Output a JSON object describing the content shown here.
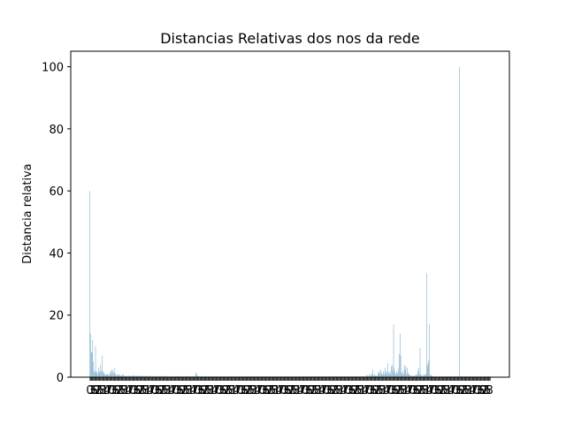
{
  "chart_data": {
    "type": "bar",
    "title": "Distancias Relativas dos nos da rede",
    "xlabel": "",
    "ylabel": "Distancia relativa",
    "ylim": [
      0,
      105
    ],
    "yticks": [
      0,
      20,
      40,
      60,
      80,
      100
    ],
    "grid": false,
    "bar_color": "#86b4cf",
    "xlim": [
      0,
      690
    ],
    "values": [
      60,
      14,
      8,
      8,
      12,
      5,
      2,
      1.5,
      10,
      2,
      1.5,
      1,
      3,
      2,
      1.5,
      4,
      2,
      7,
      1.5,
      2,
      1,
      1,
      0.8,
      1,
      0.8,
      1,
      0.8,
      0.6,
      1.5,
      2,
      1,
      2.5,
      2,
      1,
      3,
      1.5,
      1,
      0.5,
      0.8,
      1,
      0.6,
      0.5,
      1,
      0.5,
      0.4,
      0.6,
      0.8,
      1,
      0.3,
      0.5,
      0.3,
      0.4,
      0.3,
      0.5,
      0.4,
      0.3,
      0.6,
      0.4,
      0.3,
      0.5,
      0.3,
      0.8,
      0.4,
      0.3,
      0.5,
      0.3,
      0.4,
      0.5,
      0.3,
      0.6,
      0.3,
      0.2,
      0.4,
      0.3,
      0.5,
      0.3,
      0.2,
      0.4,
      0.3,
      0.6,
      0.3,
      0.4,
      0.2,
      0.3,
      0.5,
      0.3,
      0.2,
      0.4,
      0.3,
      0.2,
      0.3,
      0.4,
      0.2,
      0.3,
      0.2,
      0.3,
      0.4,
      0.2,
      0.3,
      0.2,
      0.4,
      0.3,
      0.2,
      0.3,
      0.2,
      0.5,
      0.3,
      0.2,
      0.3,
      0.2,
      0.3,
      0.2,
      0.4,
      0.3,
      0.2,
      0.3,
      0.2,
      0.3,
      0.2,
      0.3,
      0.2,
      0.3,
      0.4,
      0.3,
      0.2,
      0.3,
      0.2,
      0.3,
      0.2,
      0.3,
      0.2,
      0.3,
      0.2,
      0.3,
      0.2,
      0.4,
      0.2,
      0.3,
      0.2,
      0.3,
      0.2,
      0.3,
      0.2,
      0.3,
      0.2,
      0.3,
      0.2,
      0.3,
      1.5,
      1.2,
      0.5,
      0.3,
      0.2,
      0.3,
      0.2,
      0.3,
      0.2,
      0.3,
      0.2,
      0.3,
      0.2,
      0.3,
      0.2,
      0.3,
      0.2,
      0.3,
      0.2,
      0.3,
      0.2,
      0.3,
      0.2,
      0.3,
      0.2,
      0.3,
      0.2,
      0.3,
      0.2,
      0.3,
      0.2,
      0.3,
      0.2,
      0.3,
      0.2,
      0.3,
      0.2,
      0.3,
      0.2,
      0.3,
      0.2,
      0.3,
      0.2,
      0.3,
      0.2,
      0.3,
      0.2,
      0.3,
      0.2,
      0.3,
      0.2,
      0.3,
      0.2,
      0.3,
      0.2,
      0.3,
      0.2,
      0.3,
      0.2,
      0.3,
      0.2,
      0.3,
      0.2,
      0.3,
      0.2,
      0.3,
      0.2,
      0.3,
      0.2,
      0.3,
      0.2,
      0.3,
      0.2,
      0.3,
      0.2,
      0.3,
      0.2,
      0.3,
      0.2,
      0.3,
      0.2,
      0.3,
      0.2,
      0.3,
      0.2,
      0.3,
      0.2,
      0.3,
      0.2,
      0.3,
      0.2,
      0.3,
      0.2,
      0.3,
      0.2,
      0.3,
      0.2,
      0.3,
      0.2,
      0.3,
      0.2,
      0.3,
      0.2,
      0.3,
      0.2,
      0.3,
      0.2,
      0.3,
      0.2,
      0.3,
      0.2,
      0.3,
      0.2,
      0.3,
      0.2,
      0.3,
      0.2,
      0.3,
      0.2,
      0.3,
      0.2,
      0.3,
      0.2,
      0.3,
      0.2,
      0.3,
      0.2,
      0.3,
      0.2,
      0.3,
      0.2,
      0.3,
      0.2,
      0.3,
      0.2,
      0.3,
      0.2,
      0.3,
      0.2,
      0.3,
      0.2,
      0.3,
      0.2,
      0.3,
      0.2,
      0.3,
      0.2,
      0.3,
      0.2,
      0.3,
      0.2,
      0.3,
      0.2,
      0.3,
      0.2,
      0.3,
      0.2,
      0.3,
      0.2,
      0.3,
      0.2,
      0.3,
      0.2,
      0.3,
      0.2,
      0.3,
      0.2,
      0.3,
      0.2,
      0.3,
      0.2,
      0.3,
      0.2,
      0.3,
      0.2,
      0.3,
      0.2,
      0.3,
      0.2,
      0.3,
      0.2,
      0.3,
      0.2,
      0.3,
      0.2,
      0.3,
      0.2,
      0.3,
      0.2,
      0.3,
      0.2,
      0.3,
      0.2,
      0.3,
      0.2,
      0.3,
      0.2,
      0.3,
      0.2,
      0.3,
      0.2,
      0.3,
      0.2,
      0.3,
      0.2,
      0.3,
      0.2,
      0.3,
      0.2,
      0.3,
      0.2,
      0.3,
      0.2,
      0.3,
      0.2,
      0.3,
      0.2,
      0.3,
      0.2,
      0.3,
      0.2,
      0.3,
      0.2,
      0.3,
      0.2,
      0.3,
      0.2,
      0.3,
      0.2,
      0.3,
      0.2,
      0.3,
      0.2,
      0.3,
      0.2,
      0.3,
      0.2,
      0.3,
      0.5,
      0.8,
      0.3,
      0.2,
      1.0,
      0.5,
      0.3,
      1.2,
      0.8,
      2.5,
      0.5,
      1.0,
      0.4,
      0.6,
      0.5,
      0.3,
      1.0,
      2.0,
      1.5,
      1.0,
      2.5,
      1.5,
      0.8,
      1.0,
      2.0,
      1.0,
      3.0,
      1.5,
      2.0,
      1.0,
      4.5,
      1.5,
      1.0,
      2.0,
      1.0,
      3.5,
      4.0,
      2.0,
      17,
      3.0,
      1.5,
      1.0,
      2.0,
      1.0,
      1.5,
      3.0,
      7.5,
      14,
      7.0,
      1.5,
      1.0,
      2.0,
      1.0,
      4.0,
      2.5,
      3.5,
      1.0,
      3.0,
      1.5,
      1.0,
      0.8,
      0.6,
      0.5,
      0.4,
      0.5,
      0.3,
      0.4,
      0.6,
      0.5,
      0.8,
      0.5,
      1.0,
      2.0,
      3.0,
      1.0,
      9.5,
      0.8,
      0.6,
      0.5,
      0.4,
      1.0,
      0.6,
      0.8,
      1.0,
      33.5,
      3.5,
      4.5,
      5.5,
      17,
      0.8,
      0.6,
      0.5,
      0.4,
      0.3,
      0.2,
      0.3,
      0.2,
      0.3,
      0.2,
      0.3,
      0.2,
      0.3,
      0.2,
      0.3,
      0.2,
      0.3,
      0.2,
      0.3,
      0.2,
      0.3,
      0.2,
      0.3,
      0.2,
      0.3,
      0.2,
      0.3,
      0.2,
      0.3,
      0.2,
      0.3,
      0.2,
      0.3,
      0.2,
      0.3,
      0.2,
      0.3,
      0.2,
      0.3,
      0.2,
      0.3,
      100,
      0.3,
      0.2,
      0.3,
      0.2,
      0.3,
      0.2,
      0.3,
      0.2,
      0.3,
      0.2,
      0.3,
      0.2,
      0.3,
      0.2,
      0.3,
      0.2,
      0.3,
      0.2,
      0.3,
      0.2,
      0.3,
      0.2,
      0.3,
      0.2,
      0.3,
      0.2,
      0.3,
      0.2,
      0.3,
      0.2,
      0.3,
      0.2,
      0.3,
      0.2,
      0.3,
      0.2,
      0.3,
      0.2,
      0.3,
      0.2,
      0.3,
      0.2,
      0.3
    ]
  }
}
